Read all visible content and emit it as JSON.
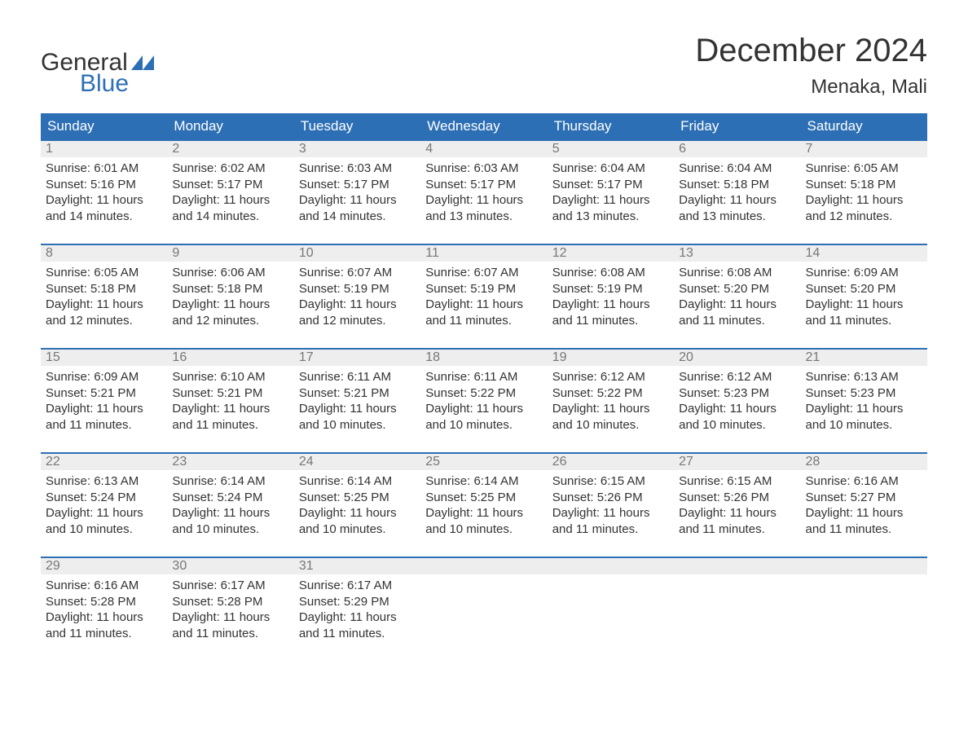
{
  "brand": {
    "line1": "General",
    "line2": "Blue",
    "icon_color": "#2d6fb5"
  },
  "title": "December 2024",
  "location": "Menaka, Mali",
  "colors": {
    "header_bg": "#2d6fb5",
    "header_text": "#ffffff",
    "daynum_bg": "#eeeeee",
    "daynum_text": "#777777",
    "cell_border": "#2d6fb5",
    "body_text": "#333333",
    "page_bg": "#ffffff"
  },
  "weekdays": [
    "Sunday",
    "Monday",
    "Tuesday",
    "Wednesday",
    "Thursday",
    "Friday",
    "Saturday"
  ],
  "labels": {
    "sunrise": "Sunrise:",
    "sunset": "Sunset:",
    "daylight": "Daylight:"
  },
  "weeks": [
    [
      {
        "n": "1",
        "sunrise": "6:01 AM",
        "sunset": "5:16 PM",
        "daylight1": "11 hours",
        "daylight2": "and 14 minutes."
      },
      {
        "n": "2",
        "sunrise": "6:02 AM",
        "sunset": "5:17 PM",
        "daylight1": "11 hours",
        "daylight2": "and 14 minutes."
      },
      {
        "n": "3",
        "sunrise": "6:03 AM",
        "sunset": "5:17 PM",
        "daylight1": "11 hours",
        "daylight2": "and 14 minutes."
      },
      {
        "n": "4",
        "sunrise": "6:03 AM",
        "sunset": "5:17 PM",
        "daylight1": "11 hours",
        "daylight2": "and 13 minutes."
      },
      {
        "n": "5",
        "sunrise": "6:04 AM",
        "sunset": "5:17 PM",
        "daylight1": "11 hours",
        "daylight2": "and 13 minutes."
      },
      {
        "n": "6",
        "sunrise": "6:04 AM",
        "sunset": "5:18 PM",
        "daylight1": "11 hours",
        "daylight2": "and 13 minutes."
      },
      {
        "n": "7",
        "sunrise": "6:05 AM",
        "sunset": "5:18 PM",
        "daylight1": "11 hours",
        "daylight2": "and 12 minutes."
      }
    ],
    [
      {
        "n": "8",
        "sunrise": "6:05 AM",
        "sunset": "5:18 PM",
        "daylight1": "11 hours",
        "daylight2": "and 12 minutes."
      },
      {
        "n": "9",
        "sunrise": "6:06 AM",
        "sunset": "5:18 PM",
        "daylight1": "11 hours",
        "daylight2": "and 12 minutes."
      },
      {
        "n": "10",
        "sunrise": "6:07 AM",
        "sunset": "5:19 PM",
        "daylight1": "11 hours",
        "daylight2": "and 12 minutes."
      },
      {
        "n": "11",
        "sunrise": "6:07 AM",
        "sunset": "5:19 PM",
        "daylight1": "11 hours",
        "daylight2": "and 11 minutes."
      },
      {
        "n": "12",
        "sunrise": "6:08 AM",
        "sunset": "5:19 PM",
        "daylight1": "11 hours",
        "daylight2": "and 11 minutes."
      },
      {
        "n": "13",
        "sunrise": "6:08 AM",
        "sunset": "5:20 PM",
        "daylight1": "11 hours",
        "daylight2": "and 11 minutes."
      },
      {
        "n": "14",
        "sunrise": "6:09 AM",
        "sunset": "5:20 PM",
        "daylight1": "11 hours",
        "daylight2": "and 11 minutes."
      }
    ],
    [
      {
        "n": "15",
        "sunrise": "6:09 AM",
        "sunset": "5:21 PM",
        "daylight1": "11 hours",
        "daylight2": "and 11 minutes."
      },
      {
        "n": "16",
        "sunrise": "6:10 AM",
        "sunset": "5:21 PM",
        "daylight1": "11 hours",
        "daylight2": "and 11 minutes."
      },
      {
        "n": "17",
        "sunrise": "6:11 AM",
        "sunset": "5:21 PM",
        "daylight1": "11 hours",
        "daylight2": "and 10 minutes."
      },
      {
        "n": "18",
        "sunrise": "6:11 AM",
        "sunset": "5:22 PM",
        "daylight1": "11 hours",
        "daylight2": "and 10 minutes."
      },
      {
        "n": "19",
        "sunrise": "6:12 AM",
        "sunset": "5:22 PM",
        "daylight1": "11 hours",
        "daylight2": "and 10 minutes."
      },
      {
        "n": "20",
        "sunrise": "6:12 AM",
        "sunset": "5:23 PM",
        "daylight1": "11 hours",
        "daylight2": "and 10 minutes."
      },
      {
        "n": "21",
        "sunrise": "6:13 AM",
        "sunset": "5:23 PM",
        "daylight1": "11 hours",
        "daylight2": "and 10 minutes."
      }
    ],
    [
      {
        "n": "22",
        "sunrise": "6:13 AM",
        "sunset": "5:24 PM",
        "daylight1": "11 hours",
        "daylight2": "and 10 minutes."
      },
      {
        "n": "23",
        "sunrise": "6:14 AM",
        "sunset": "5:24 PM",
        "daylight1": "11 hours",
        "daylight2": "and 10 minutes."
      },
      {
        "n": "24",
        "sunrise": "6:14 AM",
        "sunset": "5:25 PM",
        "daylight1": "11 hours",
        "daylight2": "and 10 minutes."
      },
      {
        "n": "25",
        "sunrise": "6:14 AM",
        "sunset": "5:25 PM",
        "daylight1": "11 hours",
        "daylight2": "and 10 minutes."
      },
      {
        "n": "26",
        "sunrise": "6:15 AM",
        "sunset": "5:26 PM",
        "daylight1": "11 hours",
        "daylight2": "and 11 minutes."
      },
      {
        "n": "27",
        "sunrise": "6:15 AM",
        "sunset": "5:26 PM",
        "daylight1": "11 hours",
        "daylight2": "and 11 minutes."
      },
      {
        "n": "28",
        "sunrise": "6:16 AM",
        "sunset": "5:27 PM",
        "daylight1": "11 hours",
        "daylight2": "and 11 minutes."
      }
    ],
    [
      {
        "n": "29",
        "sunrise": "6:16 AM",
        "sunset": "5:28 PM",
        "daylight1": "11 hours",
        "daylight2": "and 11 minutes."
      },
      {
        "n": "30",
        "sunrise": "6:17 AM",
        "sunset": "5:28 PM",
        "daylight1": "11 hours",
        "daylight2": "and 11 minutes."
      },
      {
        "n": "31",
        "sunrise": "6:17 AM",
        "sunset": "5:29 PM",
        "daylight1": "11 hours",
        "daylight2": "and 11 minutes."
      },
      {
        "empty": true
      },
      {
        "empty": true
      },
      {
        "empty": true
      },
      {
        "empty": true
      }
    ]
  ]
}
